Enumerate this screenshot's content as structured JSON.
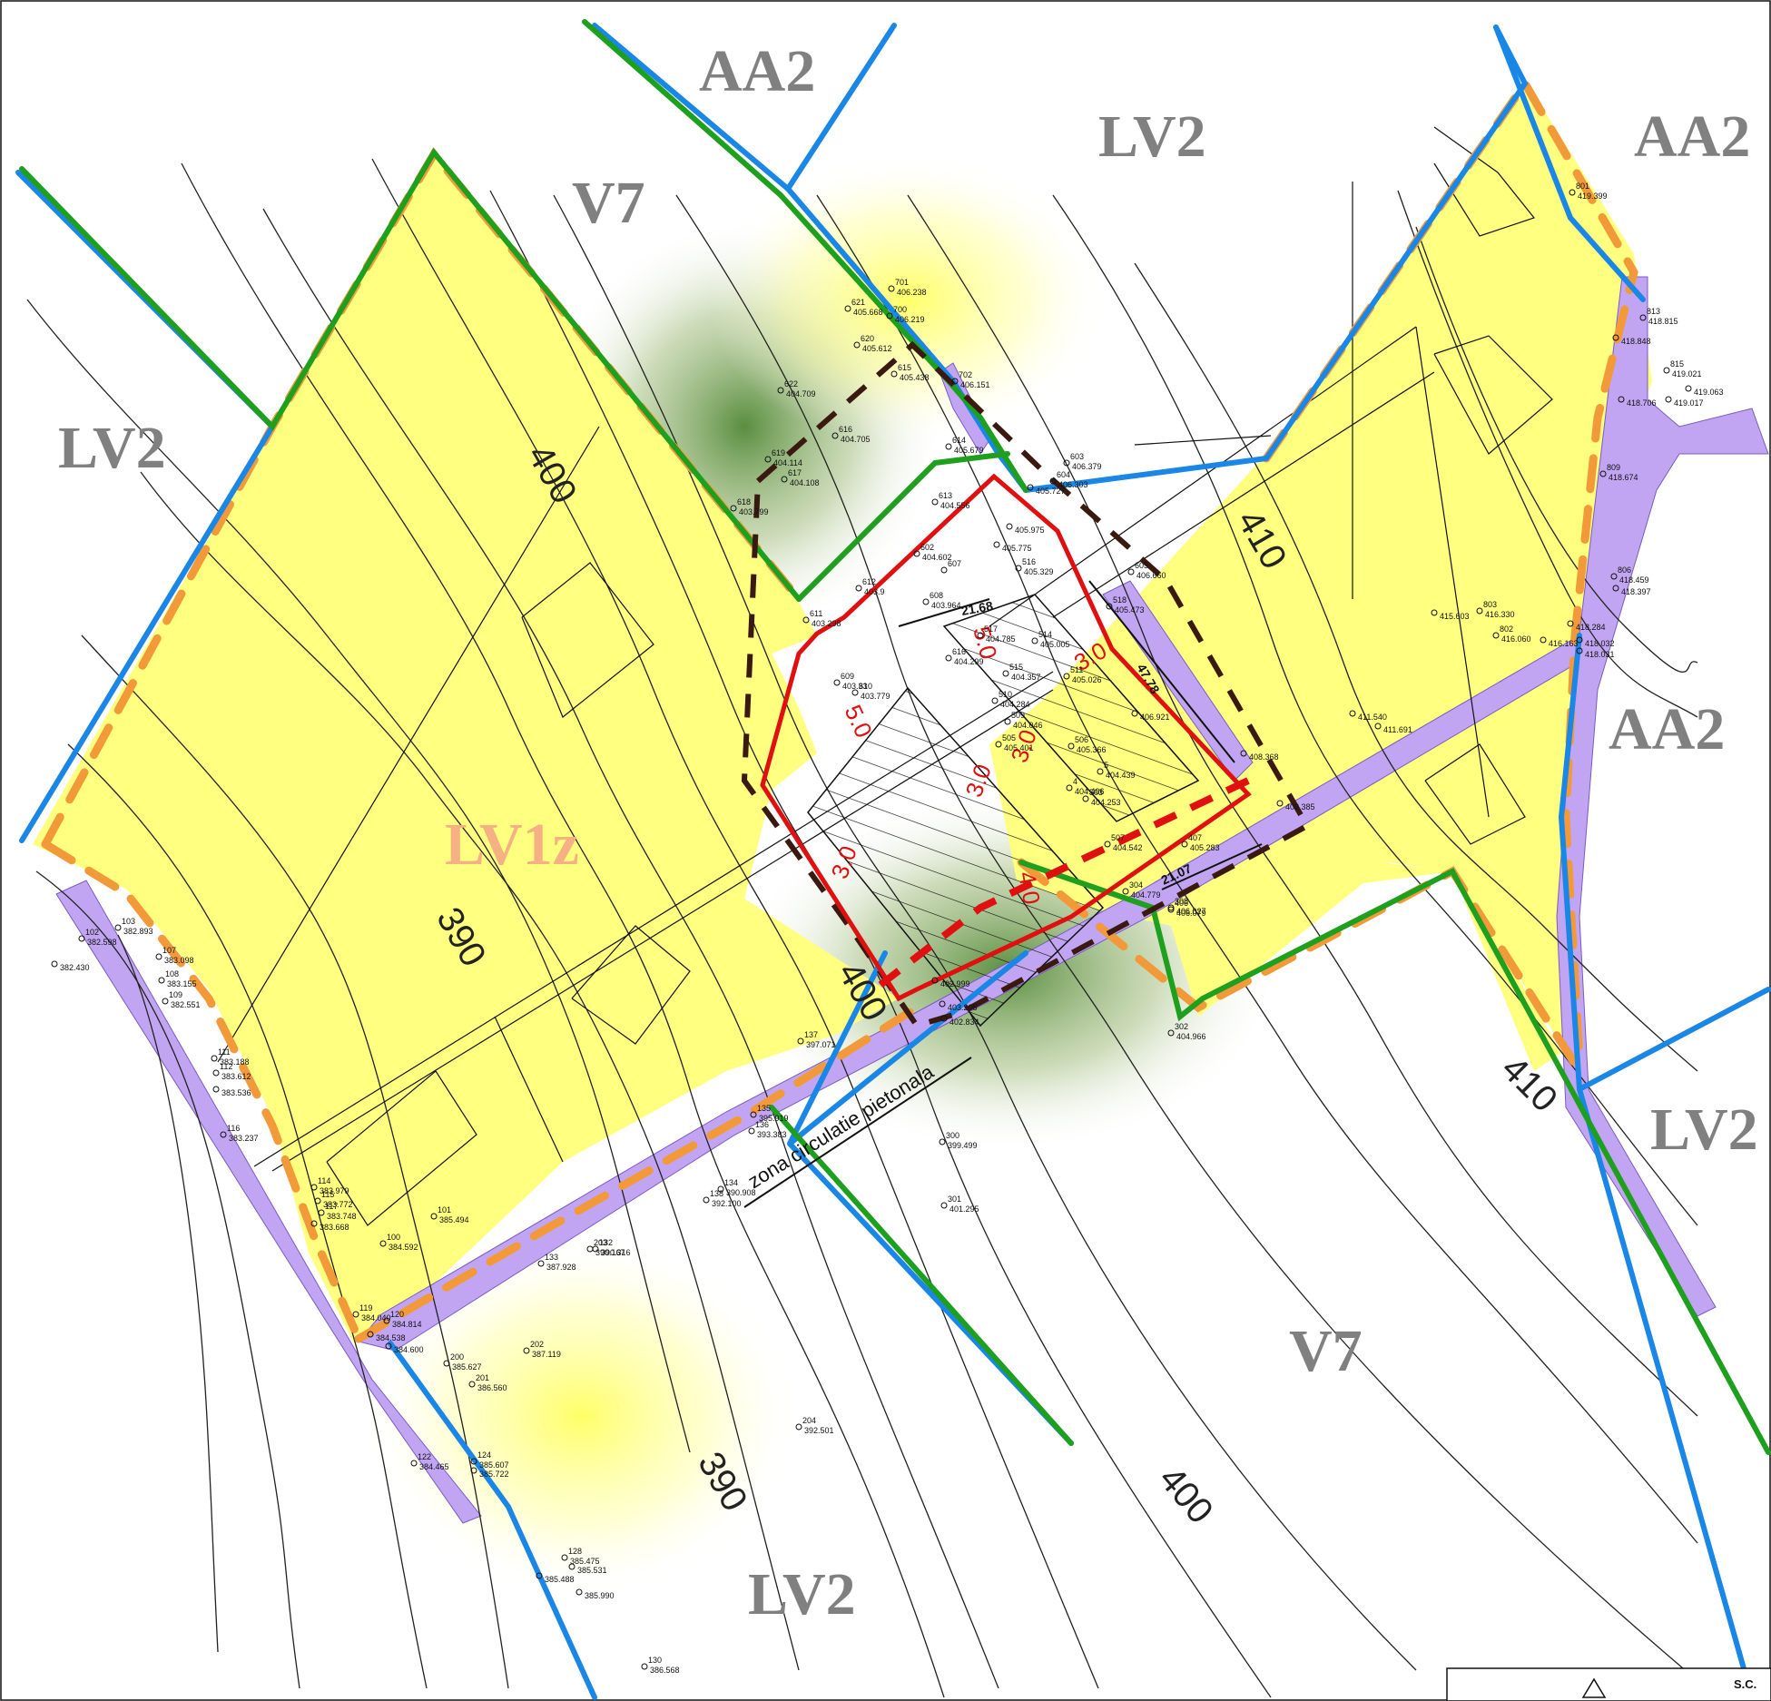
{
  "zones": [
    {
      "label": "AA2"
    },
    {
      "label": "LV2"
    },
    {
      "label": "AA2"
    },
    {
      "label": "V7"
    },
    {
      "label": "LV2"
    },
    {
      "label": "AA2"
    },
    {
      "label": "LV1z"
    },
    {
      "label": "LV2"
    },
    {
      "label": "V7"
    },
    {
      "label": "LV2"
    }
  ],
  "contours": [
    {
      "label": "400"
    },
    {
      "label": "410"
    },
    {
      "label": "390"
    },
    {
      "label": "400"
    },
    {
      "label": "410"
    },
    {
      "label": "390"
    },
    {
      "label": "400"
    }
  ],
  "dimensions": {
    "setbacks": [
      "5.0",
      "3.0",
      "5.0",
      "3.0",
      "3.0",
      "3.0",
      "4.0"
    ],
    "lengths": [
      "21.68",
      "47.78",
      "21.07"
    ]
  },
  "annotations": {
    "walkway": "zona circulatie pietonala"
  },
  "survey_points": [
    {
      "id": "701",
      "elev": "406.238"
    },
    {
      "id": "621",
      "elev": "405.668"
    },
    {
      "id": "700",
      "elev": "406.219"
    },
    {
      "id": "620",
      "elev": "405.612"
    },
    {
      "id": "615",
      "elev": "405.438"
    },
    {
      "id": "702",
      "elev": "406.151"
    },
    {
      "id": "622",
      "elev": "404.709"
    },
    {
      "id": "616",
      "elev": "404.705"
    },
    {
      "id": "619",
      "elev": "404.114"
    },
    {
      "id": "617",
      "elev": "404.108"
    },
    {
      "id": "618",
      "elev": "403.799"
    },
    {
      "id": "614",
      "elev": "405.679"
    },
    {
      "id": "603",
      "elev": "406.379"
    },
    {
      "id": "604",
      "elev": "406.303"
    },
    {
      "id": "613",
      "elev": "404.556"
    },
    {
      "id": "602",
      "elev": "404.602"
    },
    {
      "id": "607",
      "elev": ""
    },
    {
      "id": "605",
      "elev": "406.660"
    },
    {
      "id": "612",
      "elev": "403.9"
    },
    {
      "id": "608",
      "elev": "403.964"
    },
    {
      "id": "516",
      "elev": "405.329"
    },
    {
      "id": "518",
      "elev": "405.473"
    },
    {
      "id": "611",
      "elev": "403.298"
    },
    {
      "id": "517",
      "elev": "404.785"
    },
    {
      "id": "514",
      "elev": "405.005"
    },
    {
      "id": "616",
      "elev": "404.299"
    },
    {
      "id": "515",
      "elev": "404.357"
    },
    {
      "id": "511",
      "elev": "405.026"
    },
    {
      "id": "609",
      "elev": "403.33"
    },
    {
      "id": "610",
      "elev": "403.779"
    },
    {
      "id": "510",
      "elev": "404.284"
    },
    {
      "id": "509",
      "elev": "404.046"
    },
    {
      "id": "505",
      "elev": "405.401"
    },
    {
      "id": "506",
      "elev": "405.366"
    },
    {
      "id": "5",
      "elev": "404.439"
    },
    {
      "id": "4",
      "elev": "404.406"
    },
    {
      "id": "503",
      "elev": "404.253"
    },
    {
      "id": "507",
      "elev": "404.542"
    },
    {
      "id": "407",
      "elev": "405.283"
    },
    {
      "id": "406",
      "elev": "406.079"
    },
    {
      "id": "304",
      "elev": "404.779"
    },
    {
      "id": "308",
      "elev": "406.027"
    },
    {
      "id": "302",
      "elev": "404.966"
    },
    {
      "id": "300",
      "elev": "399.499"
    },
    {
      "id": "301",
      "elev": "401.295"
    },
    {
      "id": "137",
      "elev": "397.071"
    },
    {
      "id": "135",
      "elev": "395.919"
    },
    {
      "id": "136",
      "elev": "393.383"
    },
    {
      "id": "103",
      "elev": "382.893"
    },
    {
      "id": "102",
      "elev": "382.598"
    },
    {
      "id": "",
      "elev": "382.430"
    },
    {
      "id": "107",
      "elev": "383.098"
    },
    {
      "id": "108",
      "elev": "383.155"
    },
    {
      "id": "109",
      "elev": "382.551"
    },
    {
      "id": "111",
      "elev": "383.188"
    },
    {
      "id": "112",
      "elev": "383.612"
    },
    {
      "id": "",
      "elev": "383.536"
    },
    {
      "id": "116",
      "elev": "383.237"
    },
    {
      "id": "114",
      "elev": "383.979"
    },
    {
      "id": "115",
      "elev": "383.772"
    },
    {
      "id": "117",
      "elev": "383.748"
    },
    {
      "id": "",
      "elev": "383.668"
    },
    {
      "id": "101",
      "elev": "385.494"
    },
    {
      "id": "100",
      "elev": "384.592"
    },
    {
      "id": "119",
      "elev": "384.040"
    },
    {
      "id": "120",
      "elev": "384.814"
    },
    {
      "id": "",
      "elev": "384.538"
    },
    {
      "id": "",
      "elev": "384.600"
    },
    {
      "id": "200",
      "elev": "385.627"
    },
    {
      "id": "202",
      "elev": "387.119"
    },
    {
      "id": "201",
      "elev": "386.560"
    },
    {
      "id": "203",
      "elev": "390.167"
    },
    {
      "id": "133",
      "elev": "387.928"
    },
    {
      "id": "132",
      "elev": "390.316"
    },
    {
      "id": "134",
      "elev": "390.908"
    },
    {
      "id": "138",
      "elev": "392.100"
    },
    {
      "id": "204",
      "elev": "392.501"
    },
    {
      "id": "124",
      "elev": "385.607"
    },
    {
      "id": "122",
      "elev": "384.465"
    },
    {
      "id": "",
      "elev": "385.722"
    },
    {
      "id": "128",
      "elev": "385.475"
    },
    {
      "id": "",
      "elev": "385.488"
    },
    {
      "id": "",
      "elev": "385.531"
    },
    {
      "id": "",
      "elev": "385.990"
    },
    {
      "id": "130",
      "elev": "386.568"
    },
    {
      "id": "801",
      "elev": "419.399"
    },
    {
      "id": "813",
      "elev": "418.815"
    },
    {
      "id": "",
      "elev": "418.848"
    },
    {
      "id": "815",
      "elev": "419.021"
    },
    {
      "id": "",
      "elev": "419.063"
    },
    {
      "id": "",
      "elev": "418.706"
    },
    {
      "id": "",
      "elev": "419.017"
    },
    {
      "id": "809",
      "elev": "418.674"
    },
    {
      "id": "806",
      "elev": "418.459"
    },
    {
      "id": "",
      "elev": "418.397"
    },
    {
      "id": "803",
      "elev": "416.330"
    },
    {
      "id": "",
      "elev": "415.603"
    },
    {
      "id": "802",
      "elev": "416.060"
    },
    {
      "id": "",
      "elev": "416.163"
    },
    {
      "id": "",
      "elev": "418.284"
    },
    {
      "id": "",
      "elev": "418.032"
    },
    {
      "id": "",
      "elev": "418.031"
    },
    {
      "id": "",
      "elev": "411.540"
    },
    {
      "id": "",
      "elev": "411.691"
    },
    {
      "id": "",
      "elev": "406.921"
    },
    {
      "id": "",
      "elev": "408.368"
    },
    {
      "id": "",
      "elev": "408.385"
    },
    {
      "id": "",
      "elev": "405.975"
    },
    {
      "id": "",
      "elev": "405.775"
    },
    {
      "id": "",
      "elev": "405.727"
    },
    {
      "id": "",
      "elev": "403.205"
    },
    {
      "id": "",
      "elev": "402.834"
    },
    {
      "id": "",
      "elev": "402.999"
    }
  ],
  "title_block": {
    "text": "S.C."
  },
  "colors": {
    "plot_fill": "#ffff80",
    "road_fill": "#c2a5f2",
    "boundary_blue": "#1a86e6",
    "boundary_green": "#1ea01e",
    "boundary_orange": "#f29a3a",
    "building_red": "#e01010",
    "dashed_brown": "#3a1a10",
    "zone_grey": "#808080",
    "zone_orange": "#f5b183"
  }
}
